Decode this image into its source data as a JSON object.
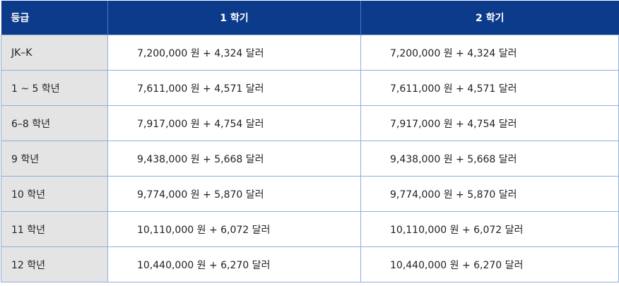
{
  "table": {
    "headers": [
      "등급",
      "1 학기",
      "2 학기"
    ],
    "rows": [
      {
        "grade": "JK–K",
        "sem1": "7,200,000 원 + 4,324 달러",
        "sem2": "7,200,000 원 + 4,324 달러"
      },
      {
        "grade": "1 ~ 5 학년",
        "sem1": "7,611,000 원 + 4,571 달러",
        "sem2": "7,611,000 원 + 4,571 달러"
      },
      {
        "grade": "6–8 학년",
        "sem1": "7,917,000 원 + 4,754 달러",
        "sem2": "7,917,000 원 + 4,754 달러"
      },
      {
        "grade": "9 학년",
        "sem1": "9,438,000 원 + 5,668 달러",
        "sem2": "9,438,000 원 + 5,668 달러"
      },
      {
        "grade": "10 학년",
        "sem1": "9,774,000 원 + 5,870 달러",
        "sem2": "9,774,000 원 + 5,870 달러"
      },
      {
        "grade": "11 학년",
        "sem1": "10,110,000 원 + 6,072 달러",
        "sem2": "10,110,000 원 + 6,072 달러"
      },
      {
        "grade": "12 학년",
        "sem1": "10,440,000 원 + 6,270 달러",
        "sem2": "10,440,000 원 + 6,270 달러"
      }
    ]
  },
  "colors": {
    "header_bg": "#0d3b8c",
    "grade_cell_bg": "#e4e4e4",
    "border": "#8fb0d8"
  }
}
